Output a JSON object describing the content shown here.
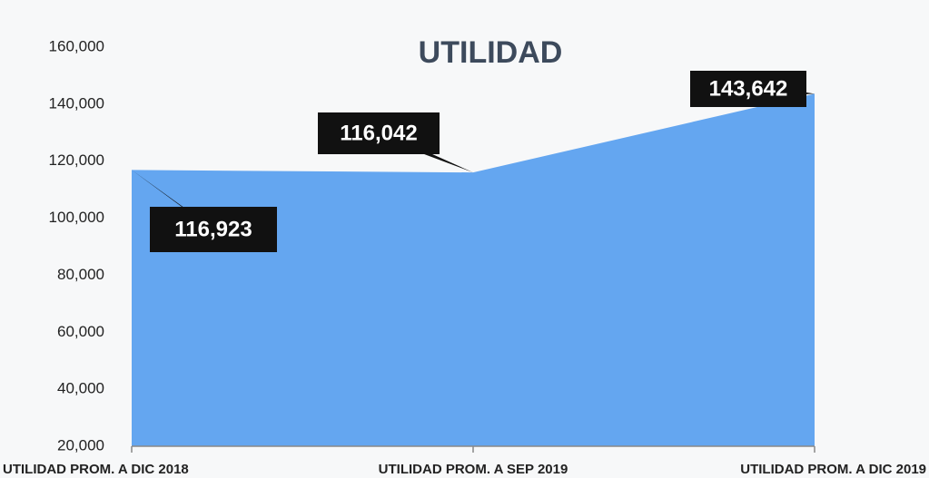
{
  "chart_data": {
    "type": "area",
    "title": "UTILIDAD",
    "categories": [
      "UTILIDAD PROM. A DIC 2018",
      "UTILIDAD PROM. A SEP 2019",
      "UTILIDAD PROM. A DIC 2019"
    ],
    "values": [
      116923,
      116042,
      143642
    ],
    "value_labels": [
      "116,923",
      "116,042",
      "143,642"
    ],
    "color": "#64a6f0",
    "ylim": [
      20000,
      160000
    ],
    "yticks": [
      {
        "value": 20000,
        "label": "20,000"
      },
      {
        "value": 40000,
        "label": "40,000"
      },
      {
        "value": 60000,
        "label": "60,000"
      },
      {
        "value": 80000,
        "label": "80,000"
      },
      {
        "value": 100000,
        "label": "100,000"
      },
      {
        "value": 120000,
        "label": "120,000"
      },
      {
        "value": 140000,
        "label": "140,000"
      },
      {
        "value": 160000,
        "label": "160,000"
      }
    ],
    "grid": false
  }
}
